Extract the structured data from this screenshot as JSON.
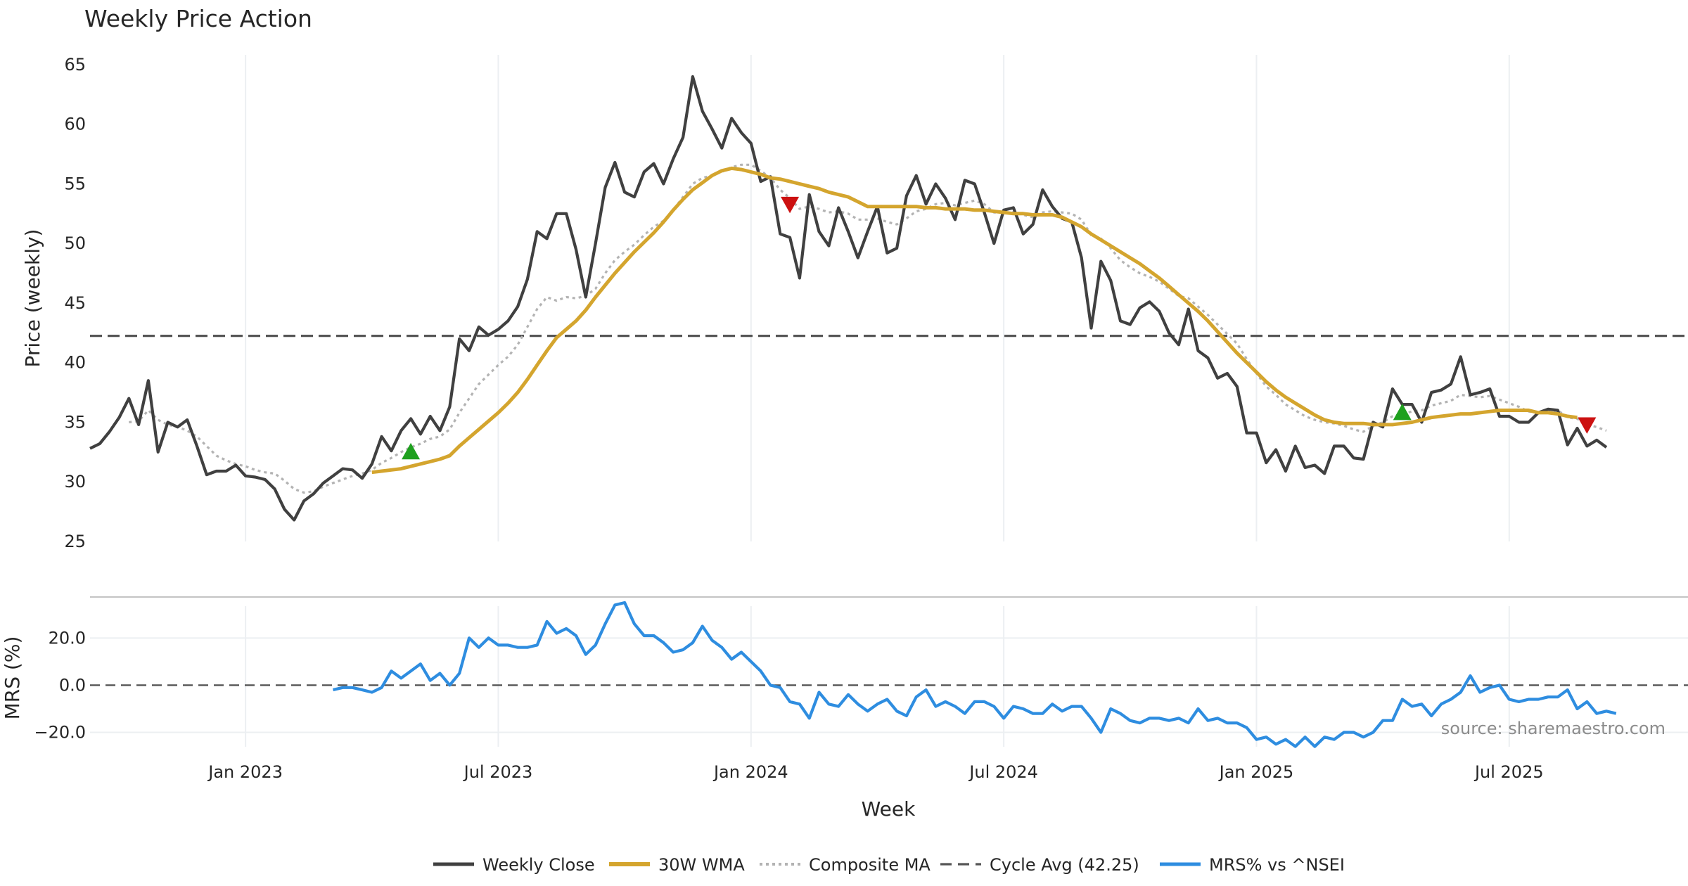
{
  "chart_data": {
    "type": "line",
    "title": "Weekly Price Action",
    "xlabel": "Week",
    "source": "source: sharemaestro.com",
    "colors": {
      "close": "#404040",
      "wma": "#d4a52e",
      "composite": "#b3b3b3",
      "cycle": "#555555",
      "mrs": "#2e8de0",
      "buy": "#1ea01e",
      "sell": "#cc1111",
      "grid": "#eceff2"
    },
    "x_tick_labels": [
      "Jan 2023",
      "Jul 2023",
      "Jan 2024",
      "Jul 2024",
      "Jan 2025",
      "Jul 2025"
    ],
    "x_tick_index": [
      16,
      42,
      68,
      94,
      120,
      146
    ],
    "x_range": [
      -3,
      165
    ],
    "price_panel": {
      "ylabel": "Price (weekly)",
      "ylim": [
        25,
        66
      ],
      "yticks": [
        25,
        30,
        35,
        40,
        45,
        50,
        55,
        60,
        65
      ],
      "cycle_avg": 42.25,
      "close": [
        32.8,
        33.2,
        34.2,
        35.4,
        37.0,
        34.8,
        38.5,
        32.5,
        35.0,
        34.6,
        35.2,
        33.0,
        30.6,
        30.9,
        30.9,
        31.4,
        30.5,
        30.4,
        30.2,
        29.4,
        27.7,
        26.8,
        28.4,
        29.0,
        29.9,
        30.5,
        31.1,
        31.0,
        30.3,
        31.5,
        33.8,
        32.6,
        34.3,
        35.3,
        34.0,
        35.5,
        34.3,
        36.3,
        42.0,
        41.0,
        43.0,
        42.3,
        42.8,
        43.5,
        44.7,
        47.0,
        51.0,
        50.4,
        52.5,
        52.5,
        49.5,
        45.5,
        50.0,
        54.7,
        56.8,
        54.3,
        53.9,
        56.0,
        56.7,
        55.0,
        57.1,
        58.9,
        64.0,
        61.1,
        59.6,
        58.0,
        60.5,
        59.3,
        58.4,
        55.2,
        55.6,
        50.8,
        50.5,
        47.1,
        54.1,
        51.0,
        49.8,
        53.0,
        51.0,
        48.8,
        51.0,
        53.1,
        49.2,
        49.6,
        54.0,
        55.7,
        53.3,
        55.0,
        53.8,
        52.0,
        55.3,
        55.0,
        52.6,
        50.0,
        52.8,
        53.0,
        50.8,
        51.6,
        54.5,
        53.1,
        52.1,
        51.8,
        48.8,
        42.9,
        48.5,
        46.9,
        43.5,
        43.2,
        44.6,
        45.1,
        44.3,
        42.5,
        41.5,
        44.5,
        41.0,
        40.4,
        38.7,
        39.1,
        38.0,
        34.1,
        34.1,
        31.6,
        32.7,
        30.9,
        33.0,
        31.2,
        31.4,
        30.7,
        33.0,
        33.0,
        32.0,
        31.9,
        35.0,
        34.6,
        37.8,
        36.5,
        36.5,
        35.0,
        37.5,
        37.7,
        38.2,
        40.5,
        37.3,
        37.5,
        37.8,
        35.5,
        35.5,
        35.0,
        35.0,
        35.8,
        36.1,
        36.0,
        33.1,
        34.5,
        33.0,
        33.5,
        32.9
      ],
      "composite_ma": [
        null,
        null,
        null,
        null,
        35.0,
        35.1,
        36.0,
        35.2,
        34.8,
        34.6,
        34.3,
        33.8,
        33.0,
        32.2,
        31.8,
        31.5,
        31.3,
        31.0,
        30.8,
        30.7,
        30.1,
        29.4,
        29.1,
        29.2,
        29.6,
        29.9,
        30.2,
        30.5,
        30.7,
        31.0,
        31.6,
        32.0,
        32.5,
        32.9,
        33.2,
        33.6,
        33.8,
        34.4,
        35.8,
        37.0,
        38.2,
        39.0,
        39.8,
        40.5,
        41.5,
        43.0,
        44.5,
        45.5,
        45.2,
        45.5,
        45.4,
        45.6,
        46.2,
        47.5,
        48.6,
        49.3,
        49.9,
        50.7,
        51.4,
        51.9,
        52.8,
        53.9,
        55.0,
        55.5,
        55.7,
        56.0,
        56.4,
        56.6,
        56.6,
        56.1,
        55.5,
        54.5,
        53.8,
        52.9,
        53.1,
        52.9,
        52.6,
        52.7,
        52.5,
        52.0,
        52.0,
        52.1,
        51.8,
        51.6,
        52.1,
        52.7,
        52.9,
        53.3,
        53.4,
        53.2,
        53.4,
        53.6,
        53.3,
        52.6,
        52.6,
        52.6,
        52.4,
        52.2,
        52.6,
        52.7,
        52.6,
        52.5,
        52.0,
        50.7,
        50.4,
        49.6,
        48.6,
        48.0,
        47.5,
        47.2,
        46.8,
        46.2,
        45.6,
        45.4,
        44.7,
        44.0,
        43.2,
        42.4,
        41.6,
        40.3,
        39.1,
        38.0,
        37.3,
        36.5,
        36.0,
        35.5,
        35.2,
        35.0,
        34.9,
        34.7,
        34.4,
        34.2,
        34.7,
        35.0,
        35.5,
        35.7,
        35.9,
        36.0,
        36.4,
        36.6,
        36.8,
        37.3,
        37.2,
        37.1,
        37.2,
        36.9,
        36.6,
        36.3,
        35.9,
        35.8,
        35.9,
        36.0,
        35.4,
        35.3,
        34.8,
        34.6,
        34.3
      ],
      "wma_30": [
        null,
        null,
        null,
        null,
        null,
        null,
        null,
        null,
        null,
        null,
        null,
        null,
        null,
        null,
        null,
        null,
        null,
        null,
        null,
        null,
        null,
        null,
        null,
        null,
        null,
        null,
        null,
        null,
        null,
        30.8,
        30.9,
        31.0,
        31.1,
        31.3,
        31.5,
        31.7,
        31.9,
        32.2,
        33.0,
        33.7,
        34.4,
        35.1,
        35.8,
        36.6,
        37.5,
        38.6,
        39.8,
        41.0,
        42.1,
        42.8,
        43.5,
        44.4,
        45.5,
        46.5,
        47.5,
        48.4,
        49.3,
        50.1,
        50.9,
        51.8,
        52.8,
        53.7,
        54.5,
        55.1,
        55.7,
        56.1,
        56.3,
        56.2,
        56.0,
        55.8,
        55.5,
        55.4,
        55.2,
        55.0,
        54.8,
        54.6,
        54.3,
        54.1,
        53.9,
        53.5,
        53.1,
        53.1,
        53.1,
        53.1,
        53.1,
        53.1,
        53.0,
        53.0,
        52.9,
        52.9,
        52.9,
        52.8,
        52.8,
        52.7,
        52.6,
        52.5,
        52.5,
        52.4,
        52.4,
        52.4,
        52.2,
        51.8,
        51.4,
        50.8,
        50.3,
        49.8,
        49.3,
        48.8,
        48.3,
        47.7,
        47.1,
        46.4,
        45.7,
        45.0,
        44.3,
        43.5,
        42.6,
        41.7,
        40.8,
        40.0,
        39.2,
        38.4,
        37.7,
        37.1,
        36.6,
        36.1,
        35.6,
        35.2,
        35.0,
        34.9,
        34.9,
        34.9,
        34.8,
        34.8,
        34.8,
        34.9,
        35.0,
        35.2,
        35.4,
        35.5,
        35.6,
        35.7,
        35.7,
        35.8,
        35.9,
        36.0,
        36.0,
        36.0,
        36.0,
        35.8,
        35.8,
        35.7,
        35.5,
        35.4
      ],
      "buy_signals": [
        {
          "i": 33,
          "y": 32.5
        },
        {
          "i": 135,
          "y": 35.8
        }
      ],
      "sell_signals": [
        {
          "i": 72,
          "y": 53.3
        },
        {
          "i": 154,
          "y": 34.8
        }
      ]
    },
    "mrs_panel": {
      "ylabel": "MRS (%)",
      "ylim": [
        -27,
        35
      ],
      "yticks": [
        20.0,
        0.0,
        -20.0
      ],
      "ytick_labels": [
        "20.0",
        "0.0",
        "−20.0"
      ],
      "zero_line": 0.0,
      "start_index": 25,
      "values": [
        -2,
        -1,
        -1,
        -2,
        -3,
        -1,
        6,
        3,
        6,
        9,
        2,
        5,
        0,
        5,
        20,
        16,
        20,
        17,
        17,
        16,
        16,
        17,
        27,
        22,
        24,
        21,
        13,
        17,
        26,
        34,
        35,
        26,
        21,
        21,
        18,
        14,
        15,
        18,
        25,
        19,
        16,
        11,
        14,
        10,
        6,
        0,
        -1,
        -7,
        -8,
        -14,
        -3,
        -8,
        -9,
        -4,
        -8,
        -11,
        -8,
        -6,
        -11,
        -13,
        -5,
        -2,
        -9,
        -7,
        -9,
        -12,
        -7,
        -7,
        -9,
        -14,
        -9,
        -10,
        -12,
        -12,
        -8,
        -11,
        -9,
        -9,
        -14,
        -20,
        -10,
        -12,
        -15,
        -16,
        -14,
        -14,
        -15,
        -14,
        -16,
        -10,
        -15,
        -14,
        -16,
        -16,
        -18,
        -23,
        -22,
        -25,
        -23,
        -26,
        -22,
        -26,
        -22,
        -23,
        -20,
        -20,
        -22,
        -20,
        -15,
        -15,
        -6,
        -9,
        -8,
        -13,
        -8,
        -6,
        -3,
        4,
        -3,
        -1,
        0,
        -6,
        -7,
        -6,
        -6,
        -5,
        -5,
        -2,
        -10,
        -7,
        -12,
        -11,
        -12
      ]
    },
    "legend": [
      {
        "label": "Weekly Close",
        "style": "solid-dark"
      },
      {
        "label": "30W WMA",
        "style": "solid-gold"
      },
      {
        "label": "Composite MA",
        "style": "dotted-gray"
      },
      {
        "label": "Cycle Avg (42.25)",
        "style": "dashed-dark"
      },
      {
        "label": "MRS% vs ^NSEI",
        "style": "solid-blue"
      }
    ]
  }
}
